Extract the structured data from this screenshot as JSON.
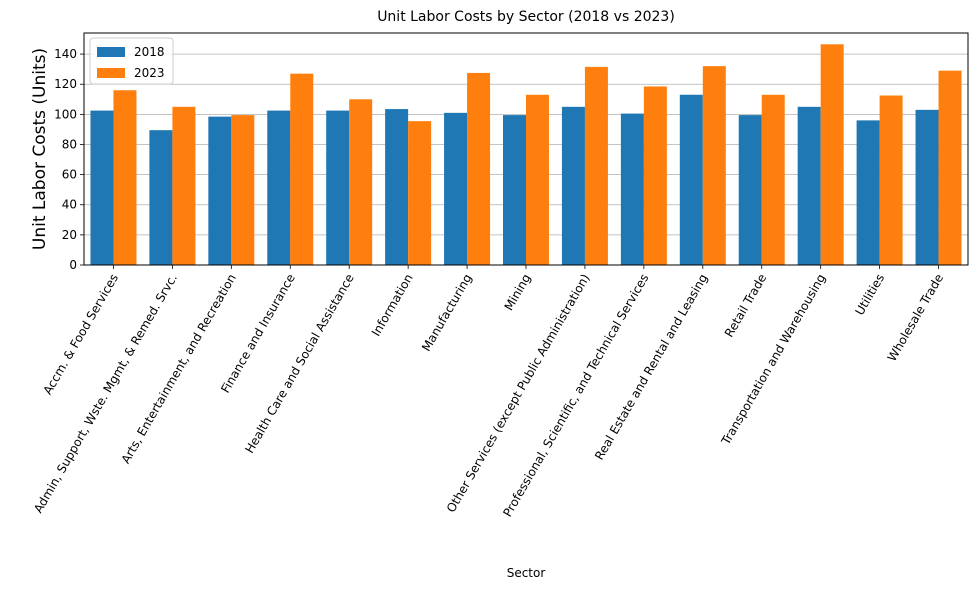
{
  "chart_data": {
    "type": "bar",
    "title": "Unit Labor Costs by Sector (2018 vs 2023)",
    "xlabel": "Sector",
    "ylabel": "Unit Labor Costs (Units)",
    "ylim": [
      0,
      154
    ],
    "yticks": [
      0,
      20,
      40,
      60,
      80,
      100,
      120,
      140
    ],
    "grid": "y",
    "legend_position": "top-left",
    "categories": [
      "Accm. & Food Services",
      "Admin, Support, Wste. Mgmt, & Remed. Srvc.",
      "Arts, Entertainment, and Recreation",
      "Finance and Insurance",
      "Health Care and Social Assistance",
      "Information",
      "Manufacturing",
      "Mining",
      "Other Services (except Public Administration)",
      "Professional, Scientific, and Technical Services",
      "Real Estate and Rental and Leasing",
      "Retail Trade",
      "Transportation and Warehousing",
      "Utilities",
      "Wholesale Trade"
    ],
    "series": [
      {
        "name": "2018",
        "color": "#1f77b4",
        "values": [
          102.5,
          89.5,
          98.5,
          102.5,
          102.5,
          103.5,
          101.0,
          99.5,
          105.0,
          100.5,
          113.0,
          99.5,
          105.0,
          96.0,
          103.0
        ]
      },
      {
        "name": "2023",
        "color": "#ff7f0e",
        "values": [
          116.0,
          105.0,
          99.5,
          127.0,
          110.0,
          95.5,
          127.5,
          113.0,
          131.5,
          118.5,
          132.0,
          113.0,
          146.5,
          112.5,
          129.0
        ]
      }
    ]
  }
}
